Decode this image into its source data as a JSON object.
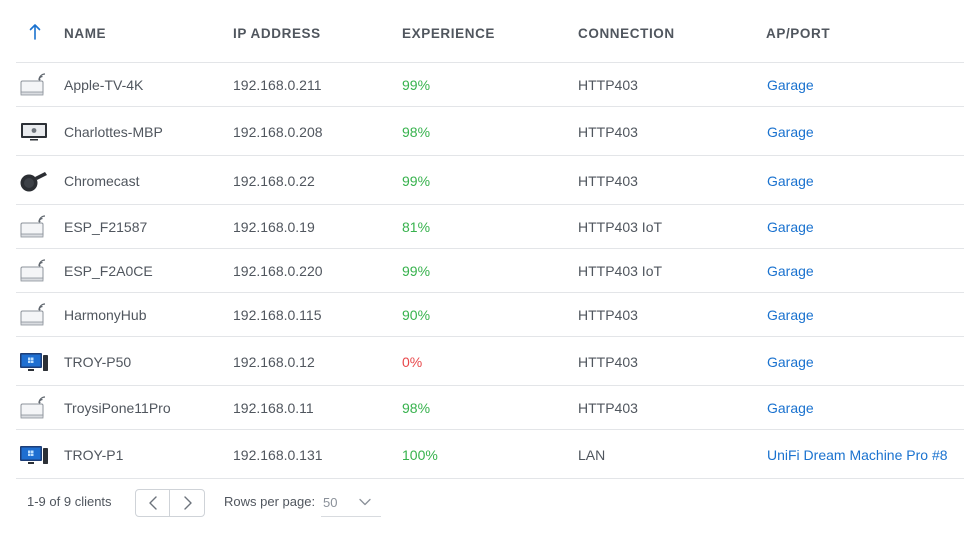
{
  "table": {
    "headers": {
      "name": "NAME",
      "ip": "IP ADDRESS",
      "experience": "EXPERIENCE",
      "connection": "CONNECTION",
      "ap": "AP/PORT"
    },
    "sort_icon": "arrow-up-icon",
    "rows": [
      {
        "icon": "wireless-device-icon",
        "name": "Apple-TV-4K",
        "ip": "192.168.0.211",
        "experience": "99%",
        "connection": "HTTP403",
        "ap": "Garage"
      },
      {
        "icon": "monitor-apple-icon",
        "name": "Charlottes-MBP",
        "ip": "192.168.0.208",
        "experience": "98%",
        "connection": "HTTP403",
        "ap": "Garage"
      },
      {
        "icon": "chromecast-icon",
        "name": "Chromecast",
        "ip": "192.168.0.22",
        "experience": "99%",
        "connection": "HTTP403",
        "ap": "Garage"
      },
      {
        "icon": "wireless-device-icon",
        "name": "ESP_F21587",
        "ip": "192.168.0.19",
        "experience": "81%",
        "connection": "HTTP403 IoT",
        "ap": "Garage"
      },
      {
        "icon": "wireless-device-icon",
        "name": "ESP_F2A0CE",
        "ip": "192.168.0.220",
        "experience": "99%",
        "connection": "HTTP403 IoT",
        "ap": "Garage"
      },
      {
        "icon": "wireless-device-icon",
        "name": "HarmonyHub",
        "ip": "192.168.0.115",
        "experience": "90%",
        "connection": "HTTP403",
        "ap": "Garage"
      },
      {
        "icon": "windows-pc-icon",
        "name": "TROY-P50",
        "ip": "192.168.0.12",
        "experience": "0%",
        "connection": "HTTP403",
        "ap": "Garage"
      },
      {
        "icon": "wireless-device-icon",
        "name": "TroysiPone11Pro",
        "ip": "192.168.0.11",
        "experience": "98%",
        "connection": "HTTP403",
        "ap": "Garage"
      },
      {
        "icon": "windows-pc-icon",
        "name": "TROY-P1",
        "ip": "192.168.0.131",
        "experience": "100%",
        "connection": "LAN",
        "ap": "UniFi Dream Machine Pro #8"
      }
    ]
  },
  "footer": {
    "count_label": "1-9 of 9 clients",
    "rows_per_page_label": "Rows per page:",
    "rows_per_page_value": "50"
  },
  "colors": {
    "good": "#37b24d",
    "bad": "#e8474a",
    "link": "#1a72cf",
    "accent": "#1a72cf"
  }
}
